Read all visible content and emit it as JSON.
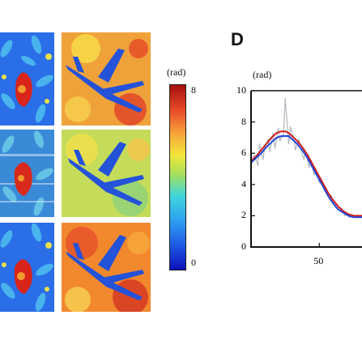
{
  "figure": {
    "panel_letter": "D",
    "colorbar": {
      "unit_label": "(rad)",
      "max_label": "8",
      "min_label": "0",
      "colormap": [
        "#0c10b8",
        "#1f5ee6",
        "#2fa6f0",
        "#3fd6d8",
        "#a8df5a",
        "#f3e63a",
        "#f6a23a",
        "#ea4c2a",
        "#a3100e"
      ]
    },
    "images": [
      {
        "row": 1,
        "col": 1,
        "subject": "flower-petals-blue-background"
      },
      {
        "row": 1,
        "col": 2,
        "subject": "airplane-on-red-background"
      },
      {
        "row": 2,
        "col": 1,
        "subject": "flower-petals-noisy"
      },
      {
        "row": 2,
        "col": 2,
        "subject": "airplane-noisy-yellow-green"
      },
      {
        "row": 3,
        "col": 1,
        "subject": "flower-petals-reconstructed"
      },
      {
        "row": 3,
        "col": 2,
        "subject": "airplane-on-orange-background"
      }
    ]
  },
  "chart_data": {
    "type": "line",
    "title": "",
    "ylabel": "(rad)",
    "xlabel": "",
    "xlim": [
      10,
      75
    ],
    "ylim": [
      0,
      10
    ],
    "yticks": [
      0,
      2,
      4,
      6,
      8,
      10
    ],
    "xticks": [
      50
    ],
    "series": [
      {
        "color": "#b7bcc2",
        "x": [
          10,
          12,
          14,
          15,
          17,
          18,
          20,
          21,
          23,
          24,
          26,
          27,
          29,
          30,
          32,
          33,
          35,
          36,
          38,
          39,
          41,
          42,
          44,
          45,
          47,
          48,
          50,
          51,
          53,
          54,
          56,
          57,
          59,
          60,
          62,
          63,
          65,
          66,
          68,
          69,
          71,
          72,
          74,
          75
        ],
        "y": [
          5.4,
          5.9,
          5.2,
          6.6,
          5.6,
          6.4,
          6.9,
          6.1,
          7.3,
          6.3,
          7.6,
          6.8,
          7.2,
          9.5,
          6.6,
          7.7,
          7.0,
          6.2,
          6.9,
          6.3,
          5.6,
          6.1,
          5.1,
          5.6,
          4.6,
          5.0,
          4.1,
          4.4,
          3.6,
          3.8,
          3.0,
          3.3,
          2.6,
          2.8,
          2.3,
          2.5,
          2.0,
          2.2,
          1.9,
          2.1,
          1.9,
          2.0,
          1.9,
          2.0
        ]
      },
      {
        "color": "#d01c1c",
        "x": [
          10,
          13,
          16,
          19,
          22,
          25,
          28,
          30,
          32,
          34,
          37,
          40,
          43,
          46,
          49,
          52,
          55,
          58,
          61,
          64,
          67,
          70,
          73,
          75
        ],
        "y": [
          5.5,
          5.8,
          6.2,
          6.6,
          7.0,
          7.3,
          7.4,
          7.4,
          7.3,
          7.1,
          6.8,
          6.4,
          5.9,
          5.3,
          4.7,
          4.1,
          3.5,
          3.0,
          2.6,
          2.3,
          2.1,
          2.0,
          2.0,
          2.0
        ]
      },
      {
        "color": "#2048d6",
        "x": [
          10,
          13,
          16,
          19,
          22,
          25,
          28,
          30,
          32,
          34,
          37,
          40,
          43,
          46,
          49,
          52,
          55,
          58,
          61,
          64,
          67,
          70,
          73,
          75
        ],
        "y": [
          5.4,
          5.7,
          6.0,
          6.4,
          6.7,
          7.0,
          7.1,
          7.1,
          7.1,
          6.9,
          6.6,
          6.2,
          5.7,
          5.1,
          4.5,
          3.9,
          3.3,
          2.8,
          2.4,
          2.2,
          2.0,
          1.9,
          1.9,
          1.9
        ]
      }
    ]
  }
}
